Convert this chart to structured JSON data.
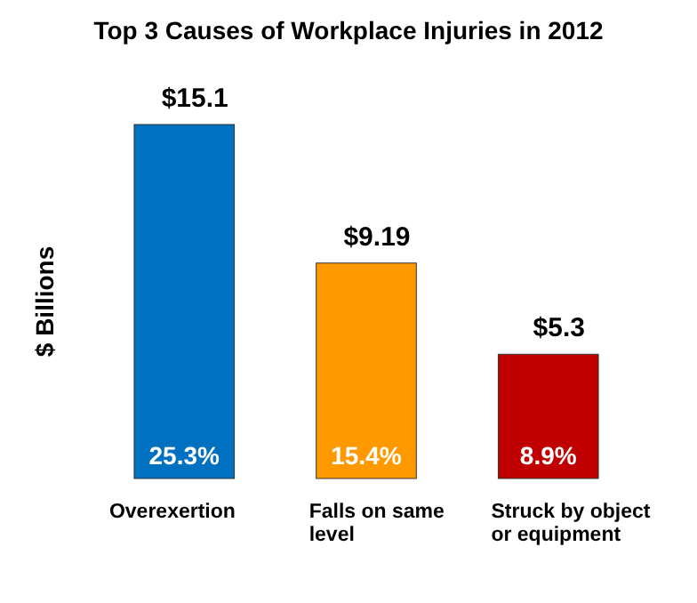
{
  "chart_data": {
    "type": "bar",
    "title": "Top 3 Causes of Workplace Injuries in 2012",
    "ylabel": "$ Billions",
    "categories": [
      "Overexertion",
      "Falls on same level",
      "Struck by object or equipment"
    ],
    "values": [
      15.1,
      9.19,
      5.3
    ],
    "colors": [
      "#0070c0",
      "#ff9900",
      "#c00000"
    ],
    "value_labels": [
      "$15.1",
      "$9.19",
      "$5.3"
    ],
    "relative": false,
    "annotations": [
      "25.3%",
      "15.4%",
      "8.9%"
    ]
  }
}
